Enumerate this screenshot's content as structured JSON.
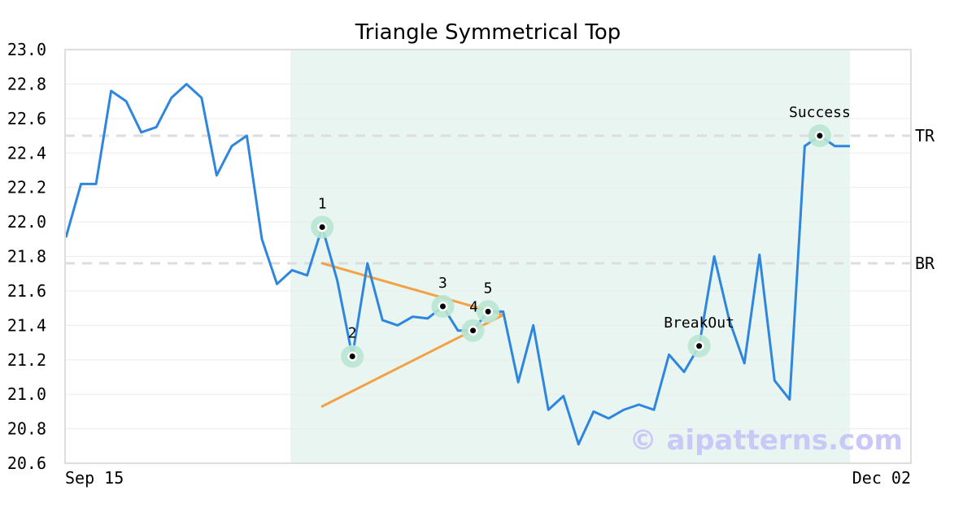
{
  "chart_data": {
    "type": "line",
    "title": "Triangle Symmetrical Top",
    "xlabel": "",
    "ylabel": "",
    "ylim": [
      20.6,
      23.0
    ],
    "y_ticks": [
      "20.6",
      "20.8",
      "21.0",
      "21.2",
      "21.4",
      "21.6",
      "21.8",
      "22.0",
      "22.2",
      "22.4",
      "22.6",
      "22.8",
      "23.0"
    ],
    "x_tick_labels": [
      "Sep 15",
      "Dec 02"
    ],
    "grid": true,
    "line_color": "#2e86de",
    "series": [
      {
        "values": [
          21.91,
          22.22,
          22.22,
          22.76,
          22.7,
          22.52,
          22.55,
          22.72,
          22.8,
          22.72,
          22.27,
          22.44,
          22.5,
          21.9,
          21.64,
          21.72,
          21.69,
          21.97,
          21.66,
          21.22,
          21.76,
          21.43,
          21.4,
          21.45,
          21.44,
          21.51,
          21.37,
          21.37,
          21.48,
          21.48,
          21.07,
          21.4,
          20.91,
          20.99,
          20.71,
          20.9,
          20.86,
          20.91,
          20.94,
          20.91,
          21.23,
          21.13,
          21.28,
          21.8,
          21.43,
          21.18,
          21.81,
          21.08,
          20.97,
          22.44,
          22.5,
          22.44,
          22.44
        ]
      }
    ],
    "shaded_region": {
      "from_index": 15,
      "to_index": 52,
      "color": "#e9f5f0"
    },
    "reference_lines": [
      {
        "label": "TR",
        "value": 22.5
      },
      {
        "label": "BR",
        "value": 21.76
      }
    ],
    "trendlines": [
      {
        "from": {
          "index": 17,
          "value": 21.76
        },
        "to": {
          "index": 29,
          "value": 21.46
        },
        "color": "#f4a044"
      },
      {
        "from": {
          "index": 17,
          "value": 20.93
        },
        "to": {
          "index": 29,
          "value": 21.46
        },
        "color": "#f4a044"
      }
    ],
    "annotations": [
      {
        "label": "1",
        "index": 17,
        "value": 21.97
      },
      {
        "label": "2",
        "index": 19,
        "value": 21.22
      },
      {
        "label": "3",
        "index": 25,
        "value": 21.51
      },
      {
        "label": "4",
        "index": 27,
        "value": 21.37
      },
      {
        "label": "5",
        "index": 28,
        "value": 21.48
      },
      {
        "label": "BreakOut",
        "index": 42,
        "value": 21.28
      },
      {
        "label": "Success",
        "index": 50,
        "value": 22.5
      }
    ],
    "marker_halo_color": "#b9e6d2"
  },
  "watermark": {
    "text": "© aipatterns.com",
    "color": "#c9c9f7"
  }
}
